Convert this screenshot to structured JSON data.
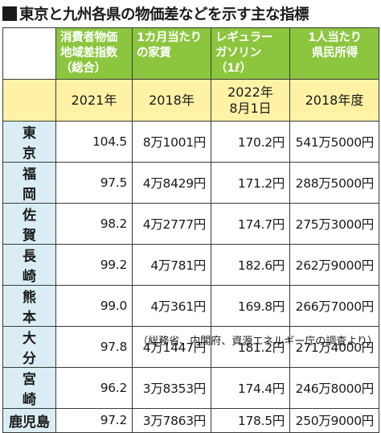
{
  "title": "東京と九州各県の物価差などを示す主な指標",
  "columns": [
    {
      "header": "消費者物価地域差指数（総合）",
      "year": "2021年"
    },
    {
      "header": "1カ月当たりの家賃",
      "year": "2018年"
    },
    {
      "header": "レギュラーガソリン（1ℓ）",
      "year": "2022年8月1日"
    },
    {
      "header": "1人当たり県民所得",
      "year": "2018年度"
    }
  ],
  "rows": [
    {
      "label": "東京",
      "values": [
        "104.5",
        "8万1001円",
        "170.2円",
        "541万5000円"
      ]
    },
    {
      "label": "福岡",
      "values": [
        "97.5",
        "4万8429円",
        "171.2円",
        "288万5000円"
      ]
    },
    {
      "label": "佐賀",
      "values": [
        "98.2",
        "4万2777円",
        "174.7円",
        "275万3000円"
      ]
    },
    {
      "label": "長崎",
      "values": [
        "99.2",
        "4万781円",
        "182.6円",
        "262万9000円"
      ]
    },
    {
      "label": "熊本",
      "values": [
        "99.0",
        "4万361円",
        "169.8円",
        "266万7000円"
      ]
    },
    {
      "label": "大分",
      "values": [
        "97.8",
        "4万1447円",
        "181.2円",
        "271万4000円"
      ]
    },
    {
      "label": "宮崎",
      "values": [
        "96.2",
        "3万8353円",
        "174.4円",
        "246万8000円"
      ]
    },
    {
      "label": "鹿児島",
      "values": [
        "97.2",
        "3万7863円",
        "178.5円",
        "250万9000円"
      ]
    }
  ],
  "source": "（総務省、内閣府、資源エネルギー庁の調査より）",
  "colors": {
    "header_green": "#8cc63f",
    "header_yellow": "#fff2a5",
    "row_header_blue": "#daedf4"
  }
}
